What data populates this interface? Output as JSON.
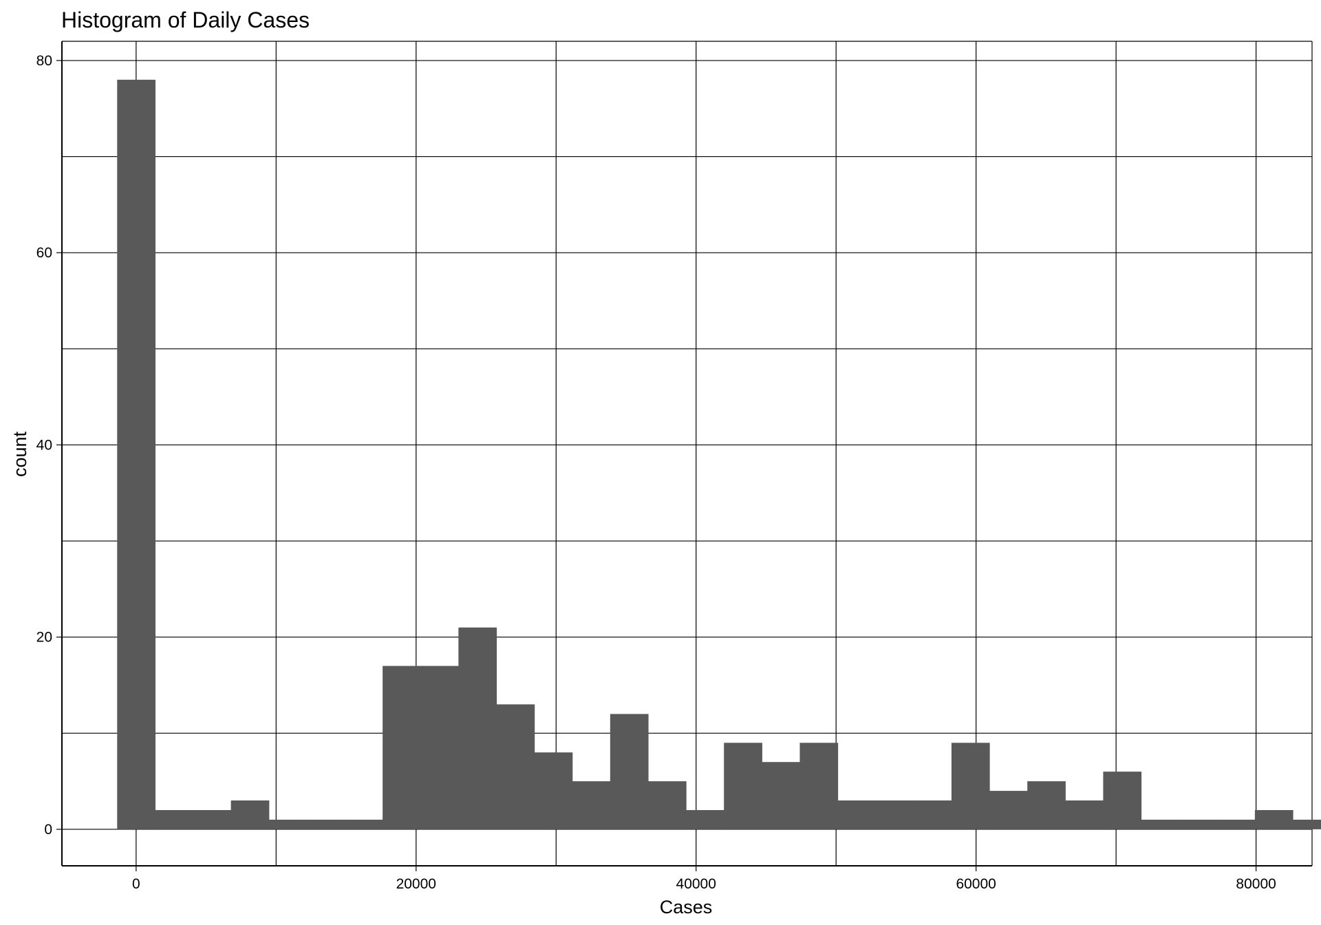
{
  "chart_data": {
    "type": "bar",
    "title": "Histogram of Daily Cases",
    "xlabel": "Cases",
    "ylabel": "count",
    "xlim": [
      -5300,
      84000
    ],
    "ylim": [
      -3.8,
      82
    ],
    "x_ticks": [
      0,
      20000,
      40000,
      60000,
      80000
    ],
    "x_tick_labels": [
      "0",
      "20000",
      "40000",
      "60000",
      "80000"
    ],
    "x_minor_grid": [
      10000,
      30000,
      50000,
      70000
    ],
    "y_ticks": [
      0,
      20,
      40,
      60,
      80
    ],
    "y_tick_labels": [
      "0",
      "20",
      "40",
      "60",
      "80"
    ],
    "y_minor_grid": [
      10,
      30,
      50,
      70
    ],
    "grid": true,
    "bin_width": 2709,
    "bin_start": -1355,
    "values": [
      78,
      2,
      2,
      3,
      1,
      1,
      1,
      17,
      17,
      21,
      13,
      8,
      5,
      12,
      5,
      2,
      9,
      7,
      9,
      3,
      3,
      3,
      9,
      4,
      5,
      3,
      6,
      1,
      1,
      1,
      2,
      1
    ],
    "bar_color": "#595959"
  }
}
